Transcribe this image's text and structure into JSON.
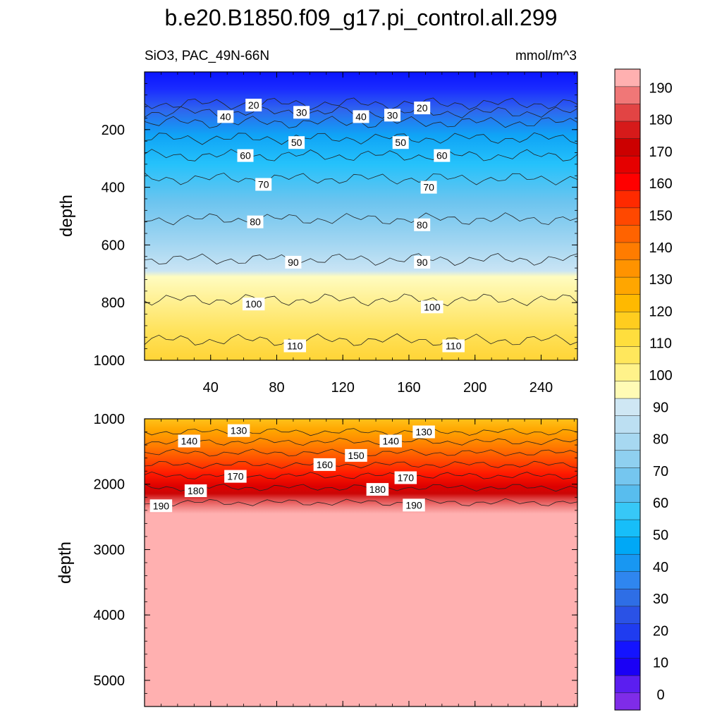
{
  "title": "b.e20.B1850.f09_g17.pi_control.all.299",
  "subtitle_left": "SiO3, PAC_49N-66N",
  "subtitle_right": "mmol/m^3",
  "chart_data": [
    {
      "type": "contour",
      "panel": "upper",
      "xlabel": "",
      "ylabel": "depth",
      "xlim": [
        0,
        262
      ],
      "ylim": [
        1000,
        0
      ],
      "x_ticks": [
        40,
        80,
        120,
        160,
        200,
        240
      ],
      "y_ticks": [
        200,
        400,
        600,
        800,
        1000
      ],
      "contour_levels": [
        20,
        30,
        40,
        50,
        60,
        70,
        80,
        90,
        100,
        110
      ],
      "contour_depths_approx": {
        "20": 110,
        "30": 140,
        "40": 175,
        "50": 230,
        "60": 290,
        "70": 370,
        "80": 510,
        "90": 650,
        "100": 790,
        "110": 930
      },
      "contour_labels": [
        {
          "text": "20",
          "x": 66,
          "depth": 115
        },
        {
          "text": "30",
          "x": 95,
          "depth": 140
        },
        {
          "text": "40",
          "x": 49,
          "depth": 155
        },
        {
          "text": "40",
          "x": 131,
          "depth": 155
        },
        {
          "text": "30",
          "x": 150,
          "depth": 150
        },
        {
          "text": "20",
          "x": 168,
          "depth": 125
        },
        {
          "text": "50",
          "x": 92,
          "depth": 245
        },
        {
          "text": "50",
          "x": 155,
          "depth": 245
        },
        {
          "text": "60",
          "x": 61,
          "depth": 290
        },
        {
          "text": "60",
          "x": 180,
          "depth": 290
        },
        {
          "text": "70",
          "x": 72,
          "depth": 390
        },
        {
          "text": "70",
          "x": 172,
          "depth": 400
        },
        {
          "text": "80",
          "x": 67,
          "depth": 520
        },
        {
          "text": "80",
          "x": 168,
          "depth": 530
        },
        {
          "text": "90",
          "x": 90,
          "depth": 660
        },
        {
          "text": "90",
          "x": 168,
          "depth": 660
        },
        {
          "text": "100",
          "x": 66,
          "depth": 805
        },
        {
          "text": "100",
          "x": 174,
          "depth": 815
        },
        {
          "text": "110",
          "x": 91,
          "depth": 950
        },
        {
          "text": "110",
          "x": 187,
          "depth": 950
        }
      ]
    },
    {
      "type": "contour",
      "panel": "lower",
      "xlabel": "",
      "ylabel": "depth",
      "xlim": [
        0,
        262
      ],
      "ylim": [
        5400,
        1000
      ],
      "y_ticks": [
        1000,
        2000,
        3000,
        4000,
        5000
      ],
      "contour_levels": [
        130,
        140,
        150,
        160,
        170,
        180,
        190
      ],
      "contour_depths_approx": {
        "130": 1200,
        "140": 1350,
        "150": 1520,
        "160": 1700,
        "170": 1870,
        "180": 2050,
        "190": 2280
      },
      "contour_labels": [
        {
          "text": "130",
          "x": 57,
          "depth": 1180
        },
        {
          "text": "140",
          "x": 27,
          "depth": 1340
        },
        {
          "text": "160",
          "x": 109,
          "depth": 1700
        },
        {
          "text": "150",
          "x": 128,
          "depth": 1560
        },
        {
          "text": "140",
          "x": 149,
          "depth": 1340
        },
        {
          "text": "130",
          "x": 169,
          "depth": 1200
        },
        {
          "text": "170",
          "x": 55,
          "depth": 1880
        },
        {
          "text": "180",
          "x": 31,
          "depth": 2100
        },
        {
          "text": "190",
          "x": 10,
          "depth": 2330
        },
        {
          "text": "180",
          "x": 141,
          "depth": 2080
        },
        {
          "text": "170",
          "x": 158,
          "depth": 1900
        },
        {
          "text": "190",
          "x": 163,
          "depth": 2320
        }
      ]
    }
  ],
  "colorbar": {
    "labels": [
      "0",
      "10",
      "20",
      "30",
      "40",
      "50",
      "60",
      "70",
      "80",
      "90",
      "100",
      "110",
      "120",
      "130",
      "140",
      "150",
      "160",
      "170",
      "180",
      "190"
    ],
    "colors": [
      "#7f2ce8",
      "#5b1ef0",
      "#1a00f5",
      "#1414ff",
      "#1f3cf0",
      "#2a52e6",
      "#2e6ee6",
      "#2f86ef",
      "#1897f2",
      "#00a8f6",
      "#17bef9",
      "#37c8f7",
      "#58bdee",
      "#75c6ef",
      "#8fd0f0",
      "#a7d8f1",
      "#bcdff2",
      "#cfe7f4",
      "#fffbb5",
      "#fff28a",
      "#ffe75c",
      "#ffde3d",
      "#ffcd1f",
      "#ffb900",
      "#ffa600",
      "#ff9300",
      "#ff7c00",
      "#ff6300",
      "#ff4800",
      "#ff2a00",
      "#ff0000",
      "#e50000",
      "#cc0000",
      "#d61a1a",
      "#e24444",
      "#f07777",
      "#ffb0b0"
    ]
  }
}
